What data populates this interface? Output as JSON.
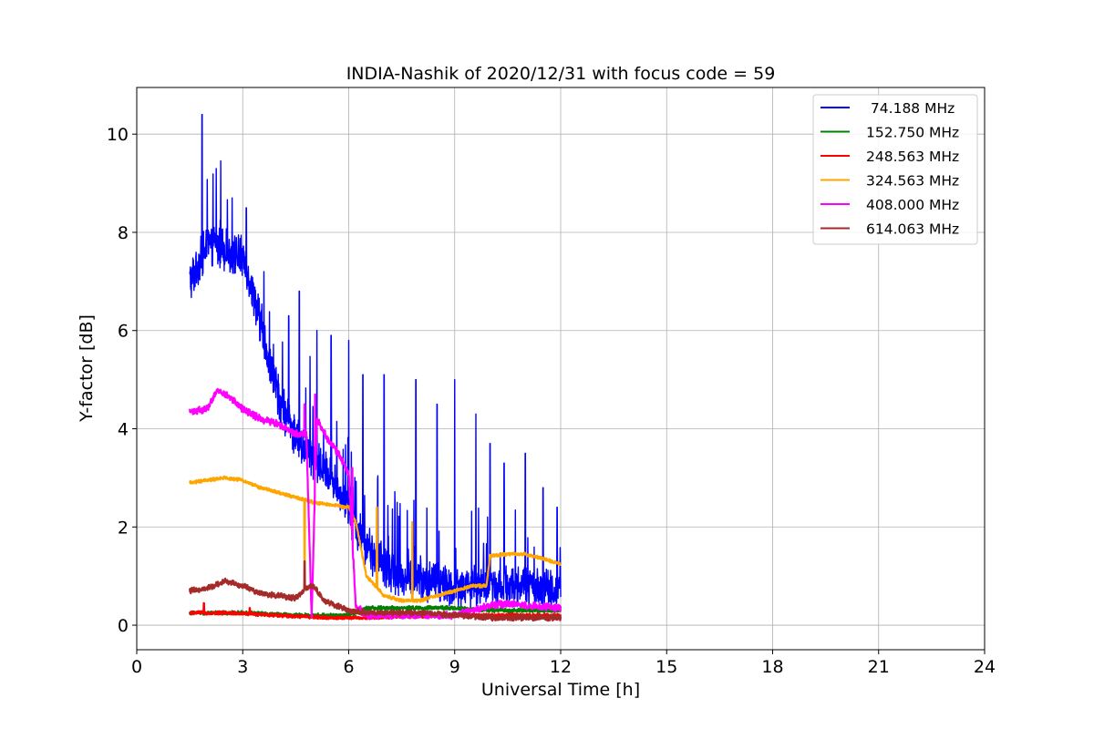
{
  "chart_data": {
    "type": "line",
    "title": "INDIA-Nashik of 2020/12/31 with focus code = 59",
    "xlabel": "Universal Time [h]",
    "ylabel": "Y-factor [dB]",
    "xlim": [
      0,
      24
    ],
    "ylim": [
      -0.5,
      10.95
    ],
    "xticks": [
      0,
      3,
      6,
      9,
      12,
      15,
      18,
      21,
      24
    ],
    "yticks": [
      0,
      2,
      4,
      6,
      8,
      10
    ],
    "grid": true,
    "legend_position": "top-right",
    "series": [
      {
        "name": " 74.188 MHz",
        "color": "#0000ff",
        "noise": 0.9,
        "x": [
          1.5,
          1.7,
          1.9,
          2.2,
          2.6,
          3.0,
          3.3,
          3.6,
          3.9,
          4.2,
          4.5,
          4.8,
          5.1,
          5.5,
          5.9,
          6.2,
          6.6,
          7.0,
          7.5,
          8.0,
          8.5,
          9.0,
          9.5,
          10.0,
          10.5,
          11.0,
          11.5,
          12.0
        ],
        "y": [
          7.0,
          7.3,
          7.6,
          7.8,
          7.6,
          7.5,
          6.8,
          5.8,
          4.9,
          4.3,
          3.8,
          3.6,
          3.3,
          3.0,
          2.5,
          2.0,
          1.5,
          1.2,
          1.0,
          0.9,
          0.9,
          0.8,
          0.8,
          0.8,
          0.8,
          0.8,
          0.7,
          0.7
        ],
        "spikes": [
          [
            1.85,
            10.4
          ],
          [
            2.25,
            9.3
          ],
          [
            2.7,
            8.7
          ],
          [
            3.1,
            8.5
          ],
          [
            3.6,
            7.2
          ],
          [
            4.3,
            6.3
          ],
          [
            4.6,
            6.8
          ],
          [
            5.1,
            6.0
          ],
          [
            5.5,
            5.9
          ],
          [
            6.0,
            5.8
          ],
          [
            6.4,
            5.1
          ],
          [
            7.0,
            5.1
          ],
          [
            7.9,
            5.0
          ],
          [
            8.5,
            4.5
          ],
          [
            9.0,
            5.0
          ],
          [
            9.6,
            4.3
          ],
          [
            10.0,
            3.7
          ],
          [
            10.4,
            3.3
          ],
          [
            11.0,
            3.5
          ],
          [
            11.5,
            2.8
          ],
          [
            11.9,
            2.4
          ]
        ]
      },
      {
        "name": "152.750 MHz",
        "color": "#008000",
        "noise": 0.08,
        "x": [
          1.5,
          3.0,
          4.5,
          6.0,
          6.5,
          8.0,
          9.0,
          10.0,
          12.0
        ],
        "y": [
          0.25,
          0.25,
          0.2,
          0.2,
          0.35,
          0.35,
          0.35,
          0.3,
          0.3
        ],
        "spikes": []
      },
      {
        "name": "248.563 MHz",
        "color": "#ff0000",
        "noise": 0.07,
        "x": [
          1.5,
          2.5,
          3.5,
          4.5,
          5.5,
          6.5,
          8.0,
          9.0,
          10.0,
          11.0,
          12.0
        ],
        "y": [
          0.25,
          0.25,
          0.22,
          0.18,
          0.15,
          0.15,
          0.18,
          0.2,
          0.2,
          0.2,
          0.2
        ],
        "spikes": [
          [
            1.9,
            0.45
          ],
          [
            3.2,
            0.35
          ]
        ]
      },
      {
        "name": "324.563 MHz",
        "color": "#ffa500",
        "noise": 0.07,
        "x": [
          1.5,
          2.0,
          2.5,
          3.0,
          3.5,
          4.0,
          4.5,
          4.8,
          5.0,
          5.5,
          6.0,
          6.2,
          6.5,
          7.0,
          7.5,
          8.0,
          8.5,
          9.0,
          9.5,
          9.9,
          10.0,
          10.5,
          11.0,
          11.5,
          12.0
        ],
        "y": [
          2.9,
          2.95,
          3.0,
          2.95,
          2.8,
          2.7,
          2.6,
          2.55,
          2.5,
          2.45,
          2.4,
          2.1,
          1.0,
          0.6,
          0.5,
          0.5,
          0.6,
          0.7,
          0.8,
          0.8,
          1.4,
          1.45,
          1.45,
          1.35,
          1.25
        ],
        "spikes": [
          [
            4.75,
            1.0
          ],
          [
            6.8,
            2.4
          ],
          [
            7.8,
            2.1
          ]
        ]
      },
      {
        "name": "408.000 MHz",
        "color": "#ff00ff",
        "noise": 0.15,
        "x": [
          1.5,
          2.0,
          2.3,
          2.7,
          3.0,
          3.5,
          4.0,
          4.5,
          4.8,
          4.95,
          5.1,
          5.4,
          5.7,
          6.0,
          6.2,
          6.5,
          7.0,
          8.0,
          9.0,
          10.0,
          10.5,
          11.0,
          12.0
        ],
        "y": [
          4.35,
          4.4,
          4.8,
          4.6,
          4.4,
          4.2,
          4.1,
          3.9,
          3.9,
          0.2,
          4.2,
          3.8,
          3.5,
          3.1,
          0.4,
          0.2,
          0.2,
          0.2,
          0.2,
          0.4,
          0.45,
          0.4,
          0.35
        ],
        "spikes": [
          [
            4.75,
            4.5
          ],
          [
            5.05,
            4.7
          ],
          [
            6.1,
            3.2
          ]
        ]
      },
      {
        "name": "614.063 MHz",
        "color": "#a52a2a",
        "noise": 0.12,
        "x": [
          1.5,
          2.0,
          2.5,
          3.0,
          3.5,
          4.0,
          4.5,
          4.8,
          5.0,
          5.3,
          6.0,
          6.5,
          7.0,
          8.0,
          9.0,
          10.0,
          11.0,
          12.0
        ],
        "y": [
          0.7,
          0.75,
          0.9,
          0.8,
          0.65,
          0.6,
          0.55,
          0.75,
          0.8,
          0.5,
          0.3,
          0.25,
          0.25,
          0.25,
          0.2,
          0.15,
          0.15,
          0.15
        ],
        "spikes": [
          [
            4.75,
            1.3
          ]
        ]
      }
    ]
  }
}
